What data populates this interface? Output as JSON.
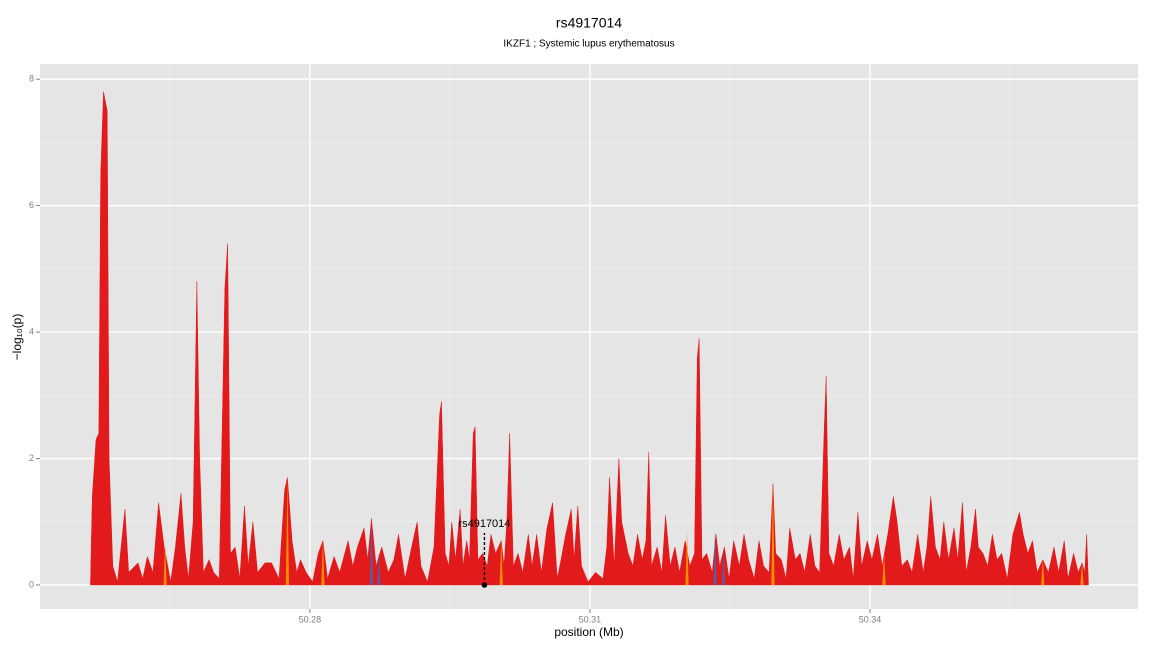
{
  "chart_data": {
    "type": "area",
    "title": "rs4917014",
    "subtitle": "IKZF1 ; Systemic lupus erythematosus",
    "xlabel": "position (Mb)",
    "ylabel": "−log₁₀(p)",
    "xlim": [
      50.2511,
      50.3687
    ],
    "ylim": [
      -0.38,
      8.24
    ],
    "xticks": [
      50.28,
      50.31,
      50.34
    ],
    "yticks": [
      0,
      2,
      4,
      6,
      8
    ],
    "xminor": [
      50.265,
      50.295,
      50.325,
      50.355
    ],
    "yminor": [
      1,
      3,
      5,
      7
    ],
    "grid": true,
    "annotation": {
      "text": "rs4917014",
      "x": 50.2987,
      "y": 0
    },
    "series": [
      {
        "type": "area",
        "color": "#e31a1c",
        "x": [
          50.2565,
          50.2567,
          50.2571,
          50.2574,
          50.2576,
          50.2579,
          50.2583,
          50.2585,
          50.2589,
          50.2594,
          50.2602,
          50.2606,
          50.2616,
          50.2621,
          50.2626,
          50.2632,
          50.2638,
          50.2644,
          50.2651,
          50.2656,
          50.2662,
          50.2666,
          50.267,
          50.2675,
          50.2679,
          50.2682,
          50.2686,
          50.2692,
          50.2697,
          50.2703,
          50.2709,
          50.2712,
          50.2715,
          50.272,
          50.2725,
          50.273,
          50.2734,
          50.2739,
          50.2744,
          50.2752,
          50.2759,
          50.2767,
          50.2773,
          50.2776,
          50.2781,
          50.2786,
          50.279,
          50.2796,
          50.2803,
          50.2809,
          50.2814,
          50.2819,
          50.2826,
          50.2832,
          50.2841,
          50.2846,
          50.2851,
          50.2858,
          50.2862,
          50.2866,
          50.2871,
          50.2877,
          50.2884,
          50.289,
          50.2895,
          50.2902,
          50.2909,
          50.2915,
          50.2919,
          50.2926,
          50.2933,
          50.2939,
          50.2941,
          50.2945,
          50.2949,
          50.2952,
          50.2956,
          50.2961,
          50.2964,
          50.2968,
          50.2971,
          50.2975,
          50.2977,
          50.298,
          50.2985,
          50.299,
          50.2994,
          50.2999,
          50.3005,
          50.3008,
          50.3011,
          50.3014,
          50.3018,
          50.3023,
          50.3028,
          50.3034,
          50.3038,
          50.3043,
          50.3048,
          50.3054,
          50.306,
          50.3065,
          50.3069,
          50.3074,
          50.308,
          50.3083,
          50.3087,
          50.3091,
          50.3098,
          50.3106,
          50.3114,
          50.3118,
          50.3121,
          50.3126,
          50.3131,
          50.3134,
          50.3141,
          50.3146,
          50.3151,
          50.3156,
          50.316,
          50.3163,
          50.3166,
          50.3172,
          50.3177,
          50.3181,
          50.3186,
          50.3191,
          50.3196,
          50.3202,
          50.3207,
          50.3212,
          50.3215,
          50.3217,
          50.322,
          50.3225,
          50.3231,
          50.3235,
          50.3239,
          50.3244,
          50.3249,
          50.3254,
          50.326,
          50.3265,
          50.327,
          50.3276,
          50.3281,
          50.3286,
          50.3292,
          50.3296,
          50.3299,
          50.3305,
          50.331,
          50.3314,
          50.332,
          50.3325,
          50.333,
          50.3336,
          50.3341,
          50.3346,
          50.3351,
          50.3353,
          50.3356,
          50.3361,
          50.3367,
          50.3372,
          50.3378,
          50.3382,
          50.3387,
          50.3391,
          50.3397,
          50.3402,
          50.3408,
          50.3413,
          50.3419,
          50.3425,
          50.3429,
          50.3434,
          50.344,
          50.3445,
          50.3451,
          50.3457,
          50.3461,
          50.3465,
          50.347,
          50.3475,
          50.3479,
          50.3484,
          50.349,
          50.3494,
          50.3499,
          50.3503,
          50.3508,
          50.3513,
          50.3516,
          50.3521,
          50.3526,
          50.3531,
          50.3536,
          50.3541,
          50.3547,
          50.3553,
          50.356,
          50.3564,
          50.3569,
          50.3574,
          50.3579,
          50.3585,
          50.3591,
          50.3597,
          50.3602,
          50.3608,
          50.3612,
          50.3618,
          50.3623,
          50.3627,
          50.363,
          50.3632,
          50.3634
        ],
        "values": [
          0,
          1.4,
          2.3,
          2.4,
          6.5,
          7.8,
          7.5,
          2.0,
          0.3,
          0.05,
          1.2,
          0.2,
          0.35,
          0.1,
          0.45,
          0.2,
          1.3,
          0.6,
          0.05,
          0.6,
          1.45,
          0.6,
          0.1,
          1.0,
          4.8,
          2.0,
          0.2,
          0.4,
          0.2,
          0.1,
          4.7,
          5.4,
          0.5,
          0.6,
          0.1,
          1.25,
          0.3,
          1.0,
          0.2,
          0.35,
          0.35,
          0.1,
          1.5,
          1.7,
          0.7,
          0.2,
          0.4,
          0.2,
          0.05,
          0.5,
          0.7,
          0.1,
          0.45,
          0.2,
          0.7,
          0.3,
          0.6,
          0.9,
          0.4,
          1.05,
          0.3,
          0.6,
          0.2,
          0.4,
          0.8,
          0.1,
          0.6,
          1.0,
          0.3,
          0.05,
          0.6,
          2.7,
          2.9,
          0.5,
          0.3,
          1.0,
          0.4,
          1.2,
          0.3,
          0.7,
          0.4,
          2.4,
          2.5,
          0.4,
          0.5,
          0.3,
          0.8,
          0.5,
          0.7,
          0.3,
          1.0,
          2.4,
          0.3,
          0.5,
          0.2,
          0.8,
          0.3,
          0.8,
          0.2,
          0.9,
          1.3,
          0.1,
          0.4,
          0.8,
          1.2,
          0.4,
          1.25,
          0.3,
          0.05,
          0.2,
          0.1,
          0.6,
          1.7,
          0.3,
          2.0,
          1.0,
          0.5,
          0.3,
          0.8,
          0.4,
          0.7,
          2.1,
          0.3,
          0.6,
          0.2,
          1.1,
          0.3,
          0.6,
          0.2,
          0.7,
          0.3,
          0.5,
          3.6,
          3.9,
          0.4,
          0.5,
          0.2,
          0.8,
          0.3,
          0.6,
          0.1,
          0.7,
          0.3,
          0.8,
          0.4,
          0.1,
          0.7,
          0.3,
          0.2,
          1.6,
          0.5,
          0.4,
          0.1,
          0.9,
          0.4,
          0.5,
          0.2,
          0.8,
          0.3,
          0.2,
          2.5,
          3.3,
          0.5,
          0.3,
          0.8,
          0.4,
          0.6,
          0.1,
          1.15,
          0.3,
          0.7,
          0.4,
          0.8,
          0.3,
          0.8,
          1.4,
          1.0,
          0.3,
          0.4,
          0.2,
          0.8,
          0.2,
          0.6,
          1.4,
          0.6,
          0.4,
          1.0,
          0.4,
          0.9,
          0.4,
          1.3,
          0.2,
          0.6,
          1.2,
          0.6,
          0.5,
          0.3,
          0.8,
          0.4,
          0.5,
          0.1,
          0.8,
          1.15,
          0.8,
          0.5,
          0.7,
          0.2,
          0.4,
          0.2,
          0.6,
          0.2,
          0.7,
          0.1,
          0.5,
          0.2,
          0.35,
          0.2,
          0.8,
          0
        ]
      },
      {
        "type": "spike",
        "color": "#ff8c00",
        "x": [
          50.2645,
          50.2776,
          50.2814,
          50.3005,
          50.3204,
          50.3296,
          50.3415,
          50.3585,
          50.3627
        ],
        "values": [
          0.65,
          1.65,
          0.7,
          0.7,
          0.85,
          1.6,
          0.5,
          0.4,
          0.35
        ]
      },
      {
        "type": "spike",
        "color": "#5b5b9e",
        "x": [
          50.2866,
          50.2874,
          50.3234,
          50.3243
        ],
        "values": [
          1.05,
          0.5,
          0.85,
          0.55
        ]
      }
    ]
  }
}
